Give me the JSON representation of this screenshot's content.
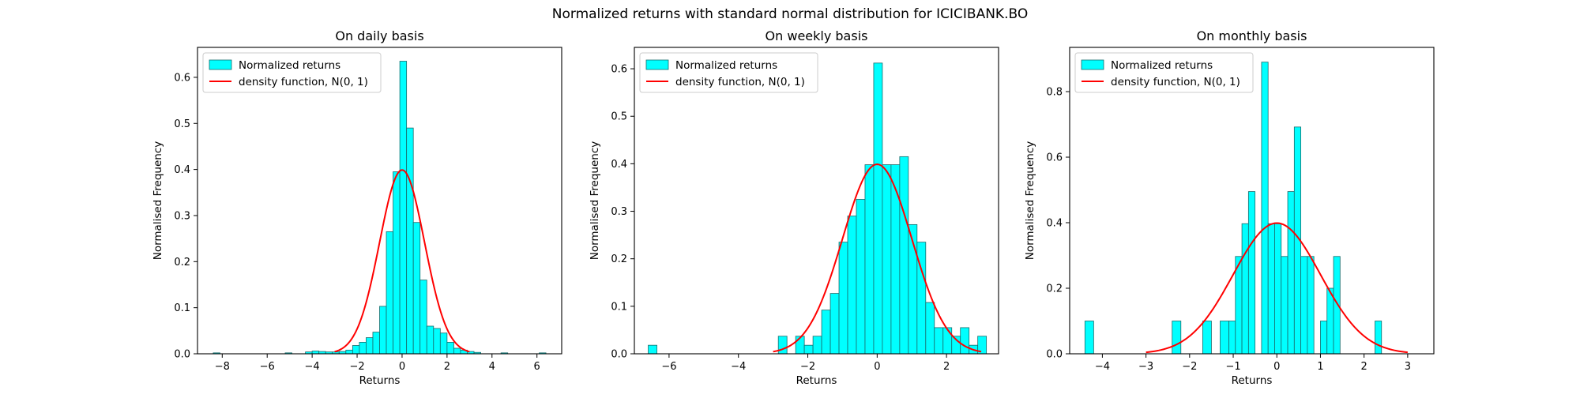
{
  "figure": {
    "suptitle": "Normalized returns with standard normal distribution for ICICIBANK.BO"
  },
  "colors": {
    "bar_fill": "#00FFFF",
    "bar_edge": "#1a6b6b",
    "curve": "#FF0000",
    "axes": "#000000"
  },
  "chart_data": [
    {
      "type": "bar",
      "title": "On daily basis",
      "xlabel": "Returns",
      "ylabel": "Normalised Frequency",
      "xlim": [
        -9.1,
        7.1
      ],
      "ylim": [
        0,
        0.665
      ],
      "xticks": [
        -8,
        -6,
        -4,
        -2,
        0,
        2,
        4,
        6
      ],
      "xtick_labels": [
        "−8",
        "−6",
        "−4",
        "−2",
        "0",
        "2",
        "4",
        "6"
      ],
      "yticks": [
        0.0,
        0.1,
        0.2,
        0.3,
        0.4,
        0.5,
        0.6
      ],
      "ytick_labels": [
        "0.0",
        "0.1",
        "0.2",
        "0.3",
        "0.4",
        "0.5",
        "0.6"
      ],
      "legend": {
        "placement": "upper-left",
        "entries": [
          "Normalized returns",
          "density function, N(0, 1)"
        ]
      },
      "series": [
        {
          "name": "Normalized returns",
          "kind": "histogram",
          "bins": [
            {
              "x0": -8.4,
              "x1": -8.1,
              "y": 0.002
            },
            {
              "x0": -5.2,
              "x1": -4.9,
              "y": 0.002
            },
            {
              "x0": -4.3,
              "x1": -4.0,
              "y": 0.004
            },
            {
              "x0": -4.0,
              "x1": -3.7,
              "y": 0.006
            },
            {
              "x0": -3.7,
              "x1": -3.4,
              "y": 0.005
            },
            {
              "x0": -3.4,
              "x1": -3.1,
              "y": 0.004
            },
            {
              "x0": -3.1,
              "x1": -2.8,
              "y": 0.004
            },
            {
              "x0": -2.8,
              "x1": -2.5,
              "y": 0.005
            },
            {
              "x0": -2.5,
              "x1": -2.2,
              "y": 0.008
            },
            {
              "x0": -2.2,
              "x1": -1.9,
              "y": 0.018
            },
            {
              "x0": -1.9,
              "x1": -1.6,
              "y": 0.025
            },
            {
              "x0": -1.6,
              "x1": -1.3,
              "y": 0.035
            },
            {
              "x0": -1.3,
              "x1": -1.0,
              "y": 0.047
            },
            {
              "x0": -1.0,
              "x1": -0.7,
              "y": 0.103
            },
            {
              "x0": -0.7,
              "x1": -0.4,
              "y": 0.265
            },
            {
              "x0": -0.4,
              "x1": -0.1,
              "y": 0.395
            },
            {
              "x0": -0.1,
              "x1": 0.2,
              "y": 0.635
            },
            {
              "x0": 0.2,
              "x1": 0.5,
              "y": 0.49
            },
            {
              "x0": 0.5,
              "x1": 0.8,
              "y": 0.285
            },
            {
              "x0": 0.8,
              "x1": 1.1,
              "y": 0.16
            },
            {
              "x0": 1.1,
              "x1": 1.4,
              "y": 0.06
            },
            {
              "x0": 1.4,
              "x1": 1.7,
              "y": 0.055
            },
            {
              "x0": 1.7,
              "x1": 2.0,
              "y": 0.045
            },
            {
              "x0": 2.0,
              "x1": 2.3,
              "y": 0.025
            },
            {
              "x0": 2.3,
              "x1": 2.6,
              "y": 0.012
            },
            {
              "x0": 2.6,
              "x1": 2.9,
              "y": 0.008
            },
            {
              "x0": 2.9,
              "x1": 3.2,
              "y": 0.005
            },
            {
              "x0": 3.2,
              "x1": 3.5,
              "y": 0.003
            },
            {
              "x0": 4.4,
              "x1": 4.7,
              "y": 0.002
            },
            {
              "x0": 6.1,
              "x1": 6.4,
              "y": 0.002
            }
          ]
        },
        {
          "name": "density function, N(0, 1)",
          "kind": "line",
          "x_range": [
            -3,
            3
          ]
        }
      ]
    },
    {
      "type": "bar",
      "title": "On weekly basis",
      "xlabel": "Returns",
      "ylabel": "Normalised Frequency",
      "xlim": [
        -7.0,
        3.5
      ],
      "ylim": [
        0,
        0.645
      ],
      "xticks": [
        -6,
        -4,
        -2,
        0,
        2
      ],
      "xtick_labels": [
        "−6",
        "−4",
        "−2",
        "0",
        "2"
      ],
      "yticks": [
        0.0,
        0.1,
        0.2,
        0.3,
        0.4,
        0.5,
        0.6
      ],
      "ytick_labels": [
        "0.0",
        "0.1",
        "0.2",
        "0.3",
        "0.4",
        "0.5",
        "0.6"
      ],
      "legend": {
        "placement": "upper-left",
        "entries": [
          "Normalized returns",
          "density function, N(0, 1)"
        ]
      },
      "series": [
        {
          "name": "Normalized returns",
          "kind": "histogram",
          "bins": [
            {
              "x0": -6.6,
              "x1": -6.35,
              "y": 0.018
            },
            {
              "x0": -2.85,
              "x1": -2.6,
              "y": 0.037
            },
            {
              "x0": -2.35,
              "x1": -2.1,
              "y": 0.037
            },
            {
              "x0": -2.1,
              "x1": -1.85,
              "y": 0.018
            },
            {
              "x0": -1.85,
              "x1": -1.6,
              "y": 0.037
            },
            {
              "x0": -1.6,
              "x1": -1.35,
              "y": 0.092
            },
            {
              "x0": -1.35,
              "x1": -1.1,
              "y": 0.127
            },
            {
              "x0": -1.1,
              "x1": -0.85,
              "y": 0.235
            },
            {
              "x0": -0.85,
              "x1": -0.6,
              "y": 0.29
            },
            {
              "x0": -0.6,
              "x1": -0.35,
              "y": 0.325
            },
            {
              "x0": -0.35,
              "x1": -0.1,
              "y": 0.398
            },
            {
              "x0": -0.1,
              "x1": 0.15,
              "y": 0.612
            },
            {
              "x0": 0.15,
              "x1": 0.4,
              "y": 0.398
            },
            {
              "x0": 0.4,
              "x1": 0.65,
              "y": 0.398
            },
            {
              "x0": 0.65,
              "x1": 0.9,
              "y": 0.415
            },
            {
              "x0": 0.9,
              "x1": 1.15,
              "y": 0.272
            },
            {
              "x0": 1.15,
              "x1": 1.4,
              "y": 0.235
            },
            {
              "x0": 1.4,
              "x1": 1.65,
              "y": 0.108
            },
            {
              "x0": 1.65,
              "x1": 1.9,
              "y": 0.055
            },
            {
              "x0": 1.9,
              "x1": 2.15,
              "y": 0.055
            },
            {
              "x0": 2.15,
              "x1": 2.4,
              "y": 0.037
            },
            {
              "x0": 2.4,
              "x1": 2.65,
              "y": 0.055
            },
            {
              "x0": 2.65,
              "x1": 2.9,
              "y": 0.018
            },
            {
              "x0": 2.9,
              "x1": 3.15,
              "y": 0.037
            }
          ]
        },
        {
          "name": "density function, N(0, 1)",
          "kind": "line",
          "x_range": [
            -3,
            3
          ]
        }
      ]
    },
    {
      "type": "bar",
      "title": "On monthly basis",
      "xlabel": "Returns",
      "ylabel": "Normalised Frequency",
      "xlim": [
        -4.75,
        3.6
      ],
      "ylim": [
        0,
        0.935
      ],
      "xticks": [
        -4,
        -3,
        -2,
        -1,
        0,
        1,
        2,
        3
      ],
      "xtick_labels": [
        "−4",
        "−3",
        "−2",
        "−1",
        "0",
        "1",
        "2",
        "3"
      ],
      "yticks": [
        0.0,
        0.2,
        0.4,
        0.6,
        0.8
      ],
      "ytick_labels": [
        "0.0",
        "0.2",
        "0.4",
        "0.6",
        "0.8"
      ],
      "legend": {
        "placement": "upper-left",
        "entries": [
          "Normalized returns",
          "density function, N(0, 1)"
        ]
      },
      "series": [
        {
          "name": "Normalized returns",
          "kind": "histogram",
          "bins": [
            {
              "x0": -4.4,
              "x1": -4.2,
              "y": 0.1
            },
            {
              "x0": -2.4,
              "x1": -2.2,
              "y": 0.1
            },
            {
              "x0": -1.7,
              "x1": -1.5,
              "y": 0.1
            },
            {
              "x0": -1.3,
              "x1": -1.1,
              "y": 0.1
            },
            {
              "x0": -1.1,
              "x1": -0.95,
              "y": 0.1
            },
            {
              "x0": -0.95,
              "x1": -0.8,
              "y": 0.297
            },
            {
              "x0": -0.8,
              "x1": -0.65,
              "y": 0.397
            },
            {
              "x0": -0.65,
              "x1": -0.5,
              "y": 0.495
            },
            {
              "x0": -0.35,
              "x1": -0.2,
              "y": 0.89
            },
            {
              "x0": -0.2,
              "x1": -0.05,
              "y": 0.397
            },
            {
              "x0": -0.05,
              "x1": 0.1,
              "y": 0.397
            },
            {
              "x0": 0.1,
              "x1": 0.25,
              "y": 0.297
            },
            {
              "x0": 0.25,
              "x1": 0.4,
              "y": 0.495
            },
            {
              "x0": 0.4,
              "x1": 0.55,
              "y": 0.692
            },
            {
              "x0": 0.55,
              "x1": 0.7,
              "y": 0.297
            },
            {
              "x0": 0.7,
              "x1": 0.85,
              "y": 0.297
            },
            {
              "x0": 1.0,
              "x1": 1.15,
              "y": 0.1
            },
            {
              "x0": 1.15,
              "x1": 1.3,
              "y": 0.2
            },
            {
              "x0": 1.3,
              "x1": 1.45,
              "y": 0.297
            },
            {
              "x0": 1.45,
              "x1": 1.55,
              "y": 0.0
            },
            {
              "x0": 2.25,
              "x1": 2.4,
              "y": 0.1
            }
          ]
        },
        {
          "name": "density function, N(0, 1)",
          "kind": "line",
          "x_range": [
            -3,
            3
          ]
        }
      ]
    }
  ]
}
